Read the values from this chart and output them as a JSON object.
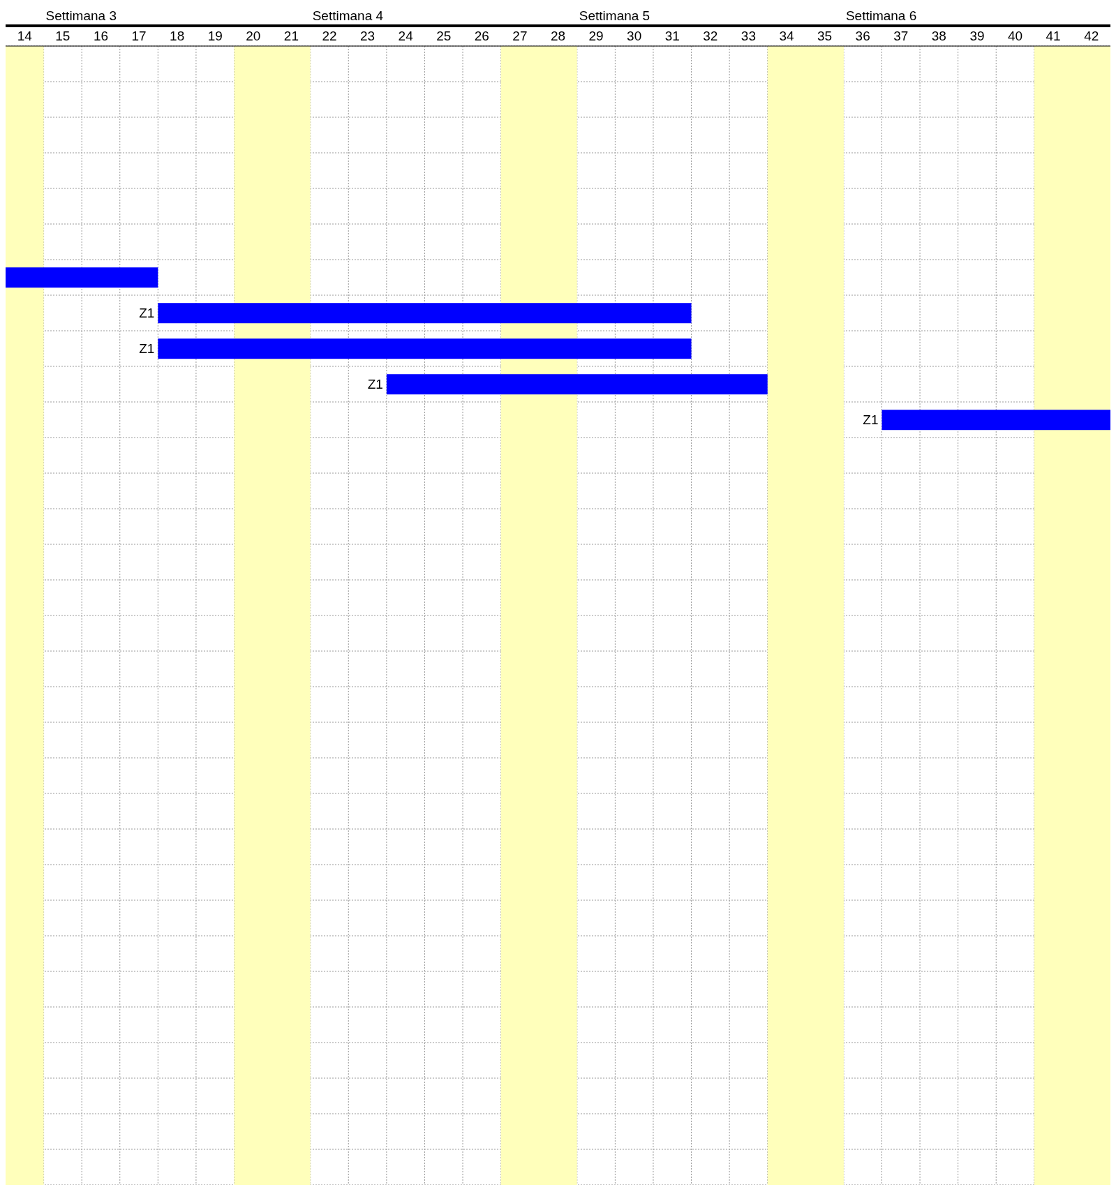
{
  "chart_data": {
    "type": "bar",
    "orientation": "horizontal",
    "categories": [
      null,
      null,
      null,
      null,
      null,
      null,
      null,
      null,
      null,
      null,
      null,
      null,
      null,
      null,
      null,
      null,
      null,
      null,
      null,
      null,
      null,
      null,
      null,
      null,
      null,
      null,
      null,
      null,
      null,
      null,
      null,
      null
    ],
    "base": [
      null,
      null,
      null,
      null,
      null,
      null,
      14,
      18,
      18,
      24,
      37,
      null,
      null,
      null,
      null,
      null,
      null,
      null,
      null,
      null,
      null,
      null,
      null,
      null,
      null,
      null,
      null,
      null,
      null,
      null,
      null,
      null
    ],
    "values": [
      null,
      null,
      null,
      null,
      null,
      null,
      4,
      14,
      14,
      10,
      6,
      null,
      null,
      null,
      null,
      null,
      null,
      null,
      null,
      null,
      null,
      null,
      null,
      null,
      null,
      null,
      null,
      null,
      null,
      null,
      null,
      null
    ],
    "value_labels": [
      null,
      null,
      null,
      null,
      null,
      null,
      null,
      "Z1",
      "Z1",
      "Z1",
      "Z1",
      null,
      null,
      null,
      null,
      null,
      null,
      null,
      null,
      null,
      null,
      null,
      null,
      null,
      null,
      null,
      null,
      null,
      null,
      null,
      null,
      null
    ],
    "color": "#0000ff",
    "xlim": [
      14,
      43
    ],
    "xticks": [
      {
        "value": 14.5,
        "label": "14"
      },
      {
        "value": 15.5,
        "label": "15"
      },
      {
        "value": 16.5,
        "label": "16"
      },
      {
        "value": 17.5,
        "label": "17"
      },
      {
        "value": 18.5,
        "label": "18"
      },
      {
        "value": 19.5,
        "label": "19"
      },
      {
        "value": 20.5,
        "label": "20"
      },
      {
        "value": 21.5,
        "label": "21"
      },
      {
        "value": 22.5,
        "label": "22"
      },
      {
        "value": 23.5,
        "label": "23"
      },
      {
        "value": 24.5,
        "label": "24"
      },
      {
        "value": 25.5,
        "label": "25"
      },
      {
        "value": 26.5,
        "label": "26"
      },
      {
        "value": 27.5,
        "label": "27"
      },
      {
        "value": 28.5,
        "label": "28"
      },
      {
        "value": 29.5,
        "label": "29"
      },
      {
        "value": 30.5,
        "label": "30"
      },
      {
        "value": 31.5,
        "label": "31"
      },
      {
        "value": 32.5,
        "label": "32"
      },
      {
        "value": 33.5,
        "label": "33"
      },
      {
        "value": 34.5,
        "label": "34"
      },
      {
        "value": 35.5,
        "label": "35"
      },
      {
        "value": 36.5,
        "label": "36"
      },
      {
        "value": 37.5,
        "label": "37"
      },
      {
        "value": 38.5,
        "label": "38"
      },
      {
        "value": 39.5,
        "label": "39"
      },
      {
        "value": 40.5,
        "label": "40"
      },
      {
        "value": 41.5,
        "label": "41"
      },
      {
        "value": 42.5,
        "label": "42"
      }
    ],
    "annotations": [
      "Settimana 3",
      "Settimana 4",
      "Settimana 5",
      "Settimana 6"
    ],
    "bands": [
      {
        "axis": "x",
        "from": 14,
        "to": 15,
        "color": "#ffffbb"
      },
      {
        "axis": "x",
        "from": 20,
        "to": 22,
        "color": "#ffffbb"
      },
      {
        "axis": "x",
        "from": 27,
        "to": 29,
        "color": "#ffffbb"
      },
      {
        "axis": "x",
        "from": 34,
        "to": 36,
        "color": "#ffffbb"
      },
      {
        "axis": "x",
        "from": 41,
        "to": 43,
        "color": "#ffffbb"
      }
    ],
    "grid": true,
    "tick_labels": "x"
  }
}
